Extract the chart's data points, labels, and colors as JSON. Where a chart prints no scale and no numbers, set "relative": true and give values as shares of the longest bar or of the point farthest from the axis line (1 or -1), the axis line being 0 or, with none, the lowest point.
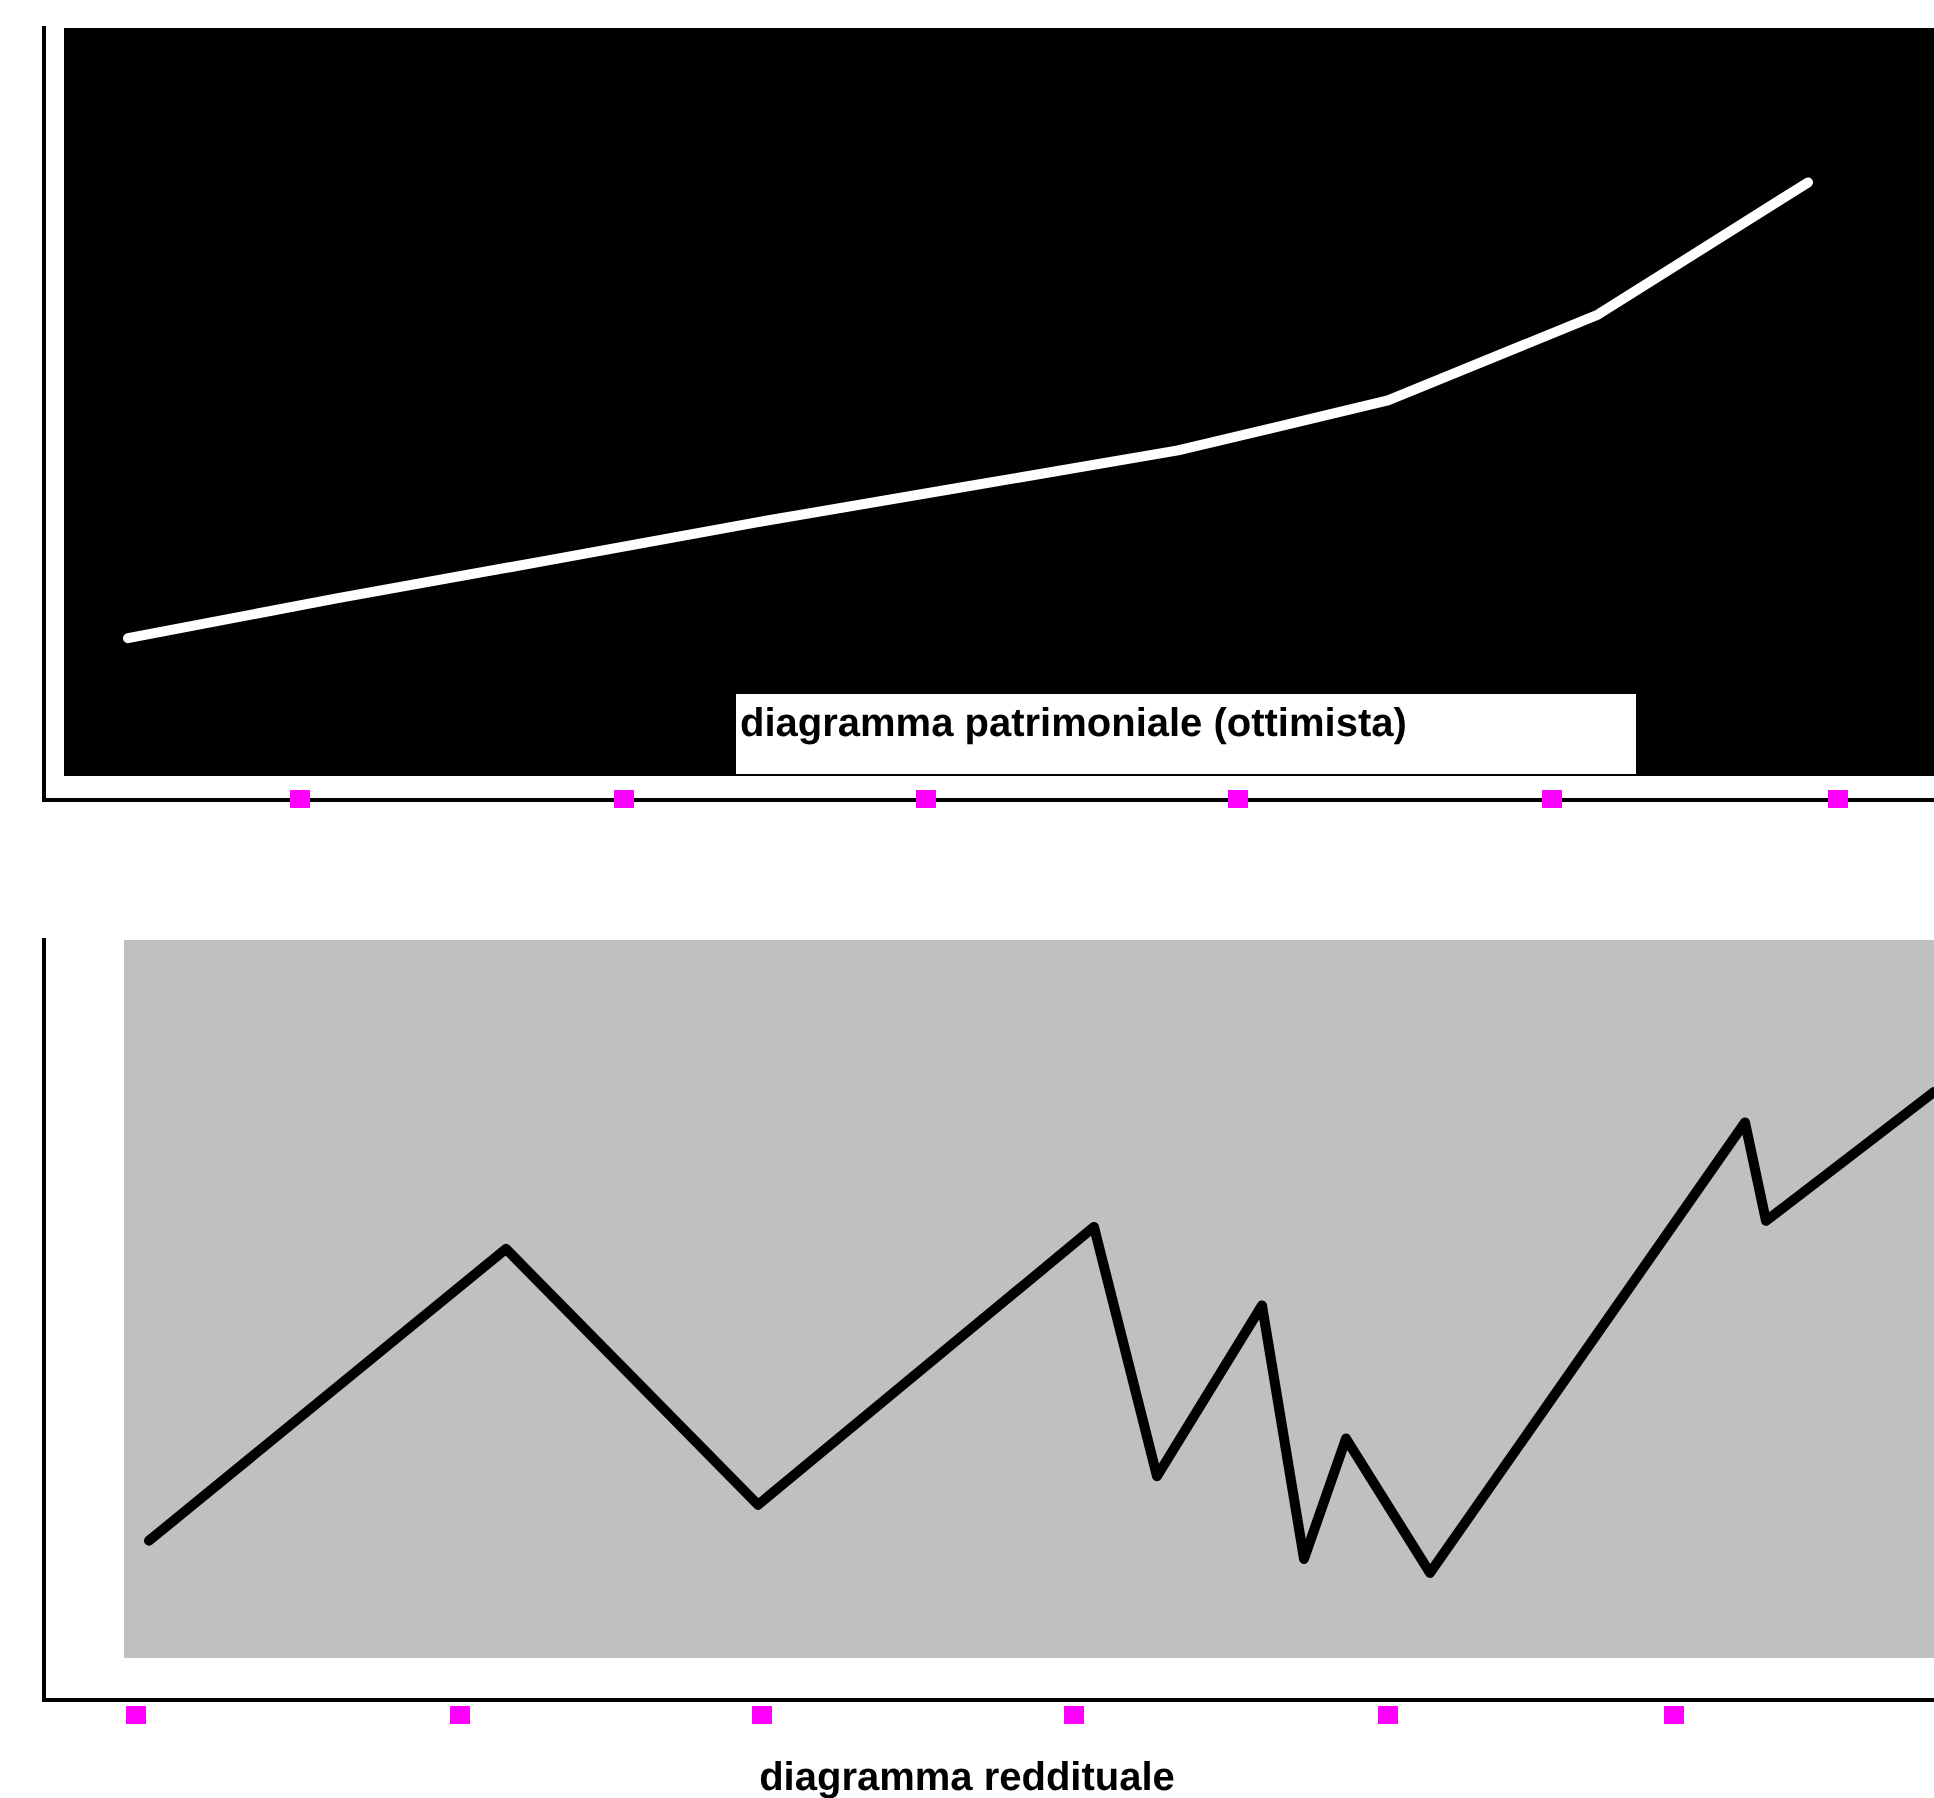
{
  "chart_data": [
    {
      "type": "line",
      "title": "diagramma patrimoniale (ottimista)",
      "relative": true,
      "categories": [
        null,
        null,
        null,
        null,
        null,
        null,
        null,
        null,
        null,
        null,
        null,
        null,
        null,
        null,
        null,
        null,
        null,
        null,
        null,
        null,
        null,
        null,
        null,
        null,
        null,
        null,
        null,
        null,
        null,
        null,
        null,
        null,
        null,
        null,
        null,
        null,
        null,
        null,
        null,
        null,
        null,
        null,
        null,
        null,
        null,
        null,
        null,
        null,
        null,
        null,
        null,
        null,
        null,
        null,
        null,
        null,
        null,
        null,
        null,
        null,
        null,
        null,
        null,
        null,
        null,
        null,
        null,
        null,
        null,
        null,
        null,
        null,
        null,
        null,
        null,
        null,
        null,
        null,
        null,
        null,
        null,
        null,
        null,
        null,
        null,
        null,
        null,
        null,
        null,
        null,
        null
      ],
      "series": [
        {
          "color": "#ffffff",
          "values": [
            null,
            null,
            null,
            null,
            0.262,
            null,
            null,
            null,
            null,
            null,
            null,
            null,
            null,
            null,
            0.327,
            null,
            null,
            null,
            null,
            null,
            null,
            null,
            null,
            null,
            0.388,
            null,
            null,
            null,
            null,
            null,
            null,
            null,
            null,
            null,
            0.45,
            null,
            null,
            null,
            null,
            null,
            null,
            null,
            null,
            null,
            0.508,
            null,
            null,
            null,
            null,
            null,
            null,
            null,
            null,
            null,
            0.566,
            null,
            null,
            null,
            null,
            null,
            null,
            null,
            null,
            null,
            0.647,
            null,
            null,
            null,
            null,
            null,
            null,
            null,
            null,
            null,
            0.786,
            null,
            null,
            null,
            null,
            null,
            null,
            null,
            null,
            null,
            1,
            null,
            null,
            null,
            null,
            null,
            null
          ]
        }
      ]
    },
    {
      "type": "line",
      "title": "diagramma reddituale",
      "relative": true,
      "categories": [
        null,
        null,
        null,
        null,
        null,
        null,
        null,
        null,
        null,
        null,
        null,
        null,
        null,
        null,
        null,
        null,
        null,
        null,
        null,
        null,
        null,
        null,
        null,
        null,
        null,
        null,
        null,
        null,
        null,
        null,
        null,
        null,
        null,
        null,
        null,
        null,
        null,
        null,
        null,
        null,
        null,
        null,
        null,
        null,
        null,
        null,
        null,
        null,
        null,
        null,
        null,
        null,
        null,
        null,
        null,
        null,
        null,
        null,
        null,
        null,
        null,
        null,
        null,
        null,
        null,
        null,
        null,
        null,
        null,
        null,
        null,
        null,
        null,
        null,
        null,
        null,
        null,
        null,
        null,
        null,
        null,
        null,
        null,
        null,
        null,
        null,
        null,
        null,
        null,
        null,
        null
      ],
      "series": [
        {
          "color": "#000000",
          "values": [
            null,
            null,
            null,
            null,
            null,
            0.262,
            null,
            null,
            null,
            null,
            null,
            null,
            null,
            null,
            null,
            null,
            null,
            null,
            null,
            null,
            null,
            null,
            0.742,
            null,
            null,
            null,
            null,
            null,
            null,
            null,
            null,
            null,
            null,
            null,
            0.321,
            null,
            null,
            null,
            null,
            null,
            null,
            null,
            null,
            null,
            null,
            null,
            null,
            null,
            null,
            null,
            0.778,
            null,
            null,
            0.368,
            null,
            null,
            null,
            null,
            0.649,
            null,
            0.232,
            null,
            0.43,
            null,
            null,
            null,
            0.209,
            null,
            null,
            null,
            null,
            null,
            null,
            null,
            null,
            null,
            null,
            null,
            null,
            null,
            null,
            0.95,
            0.788,
            null,
            null,
            null,
            null,
            null,
            null,
            null,
            1
          ]
        }
      ]
    }
  ]
}
